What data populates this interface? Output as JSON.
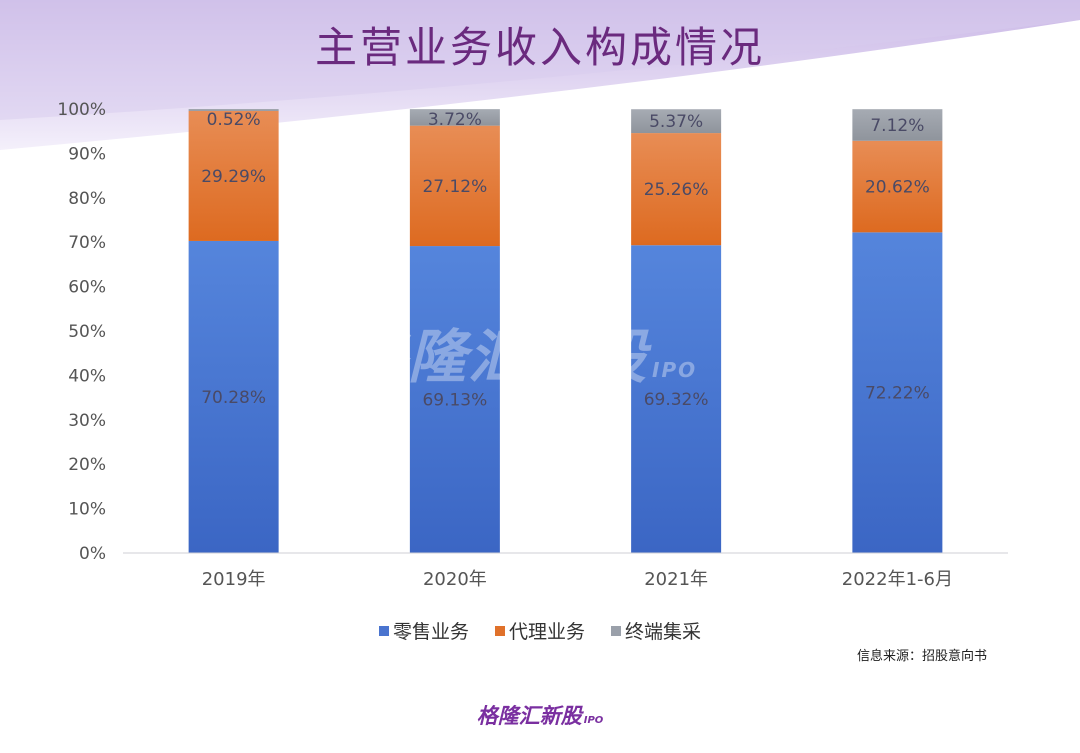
{
  "title": "主营业务收入构成情况",
  "source": "信息来源：招股意向书",
  "brand": {
    "name": "格隆汇新股",
    "suffix": "IPO"
  },
  "watermark": {
    "name": "格隆汇新股",
    "suffix": "IPO"
  },
  "colors": {
    "retail": "#4a74cf",
    "agency": "#e0712a",
    "terminal": "#9aa0aa",
    "title": "#6a2a7e"
  },
  "chart_data": {
    "type": "bar",
    "stacked": true,
    "categories": [
      "2019年",
      "2020年",
      "2021年",
      "2022年1-6月"
    ],
    "series": [
      {
        "name": "零售业务",
        "values": [
          70.28,
          69.13,
          69.32,
          72.22
        ],
        "labels": [
          "70.28%",
          "69.13%",
          "69.32%",
          "72.22%"
        ]
      },
      {
        "name": "代理业务",
        "values": [
          29.29,
          27.12,
          25.26,
          20.62
        ],
        "labels": [
          "29.29%",
          "27.12%",
          "25.26%",
          "20.62%"
        ]
      },
      {
        "name": "终端集采",
        "values": [
          0.52,
          3.72,
          5.37,
          7.12
        ],
        "labels": [
          "0.52%",
          "3.72%",
          "5.37%",
          "7.12%"
        ]
      }
    ],
    "yticks": [
      "0%",
      "10%",
      "20%",
      "30%",
      "40%",
      "50%",
      "60%",
      "70%",
      "80%",
      "90%",
      "100%"
    ],
    "ylim": [
      0,
      100
    ],
    "legend": "bottom",
    "grid": false
  }
}
